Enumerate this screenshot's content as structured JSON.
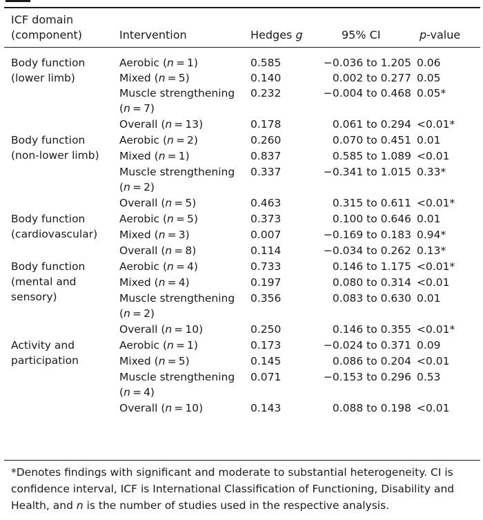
{
  "table": {
    "headers": {
      "domain_line1": "ICF domain",
      "domain_line2": "(component)",
      "intervention": "Intervention",
      "hedges_prefix": "Hedges ",
      "hedges_italic": "g",
      "ci": "95% CI",
      "pvalue_italic": "p",
      "pvalue_suffix": "-value"
    },
    "rows": [
      {
        "domain": [
          "Body function",
          "(lower limb)"
        ],
        "int_a": "Aerobic (",
        "n": "n",
        "int_b": " = 1)",
        "g": "0.585",
        "ci": "−0.036 to 1.205",
        "p": "0.06"
      },
      {
        "domain": [],
        "int_a": "Mixed (",
        "n": "n",
        "int_b": " = 5)",
        "g": "0.140",
        "ci": "0.002 to 0.277",
        "p": "0.05"
      },
      {
        "domain": [],
        "int_a": "Muscle strengthening",
        "int_line2_a": "(",
        "n": "n",
        "int_line2_b": " = 7)",
        "g": "0.232",
        "ci": "−0.004 to 0.468",
        "p": "0.05*"
      },
      {
        "domain": [],
        "int_a": "Overall (",
        "n": "n",
        "int_b": " = 13)",
        "g": "0.178",
        "ci": "0.061 to 0.294",
        "p": "<0.01*"
      },
      {
        "domain": [
          "Body function",
          "(non-lower limb)"
        ],
        "int_a": "Aerobic (",
        "n": "n",
        "int_b": " = 2)",
        "g": "0.260",
        "ci": "0.070 to 0.451",
        "p": "0.01"
      },
      {
        "domain": [],
        "int_a": "Mixed (",
        "n": "n",
        "int_b": " = 1)",
        "g": "0.837",
        "ci": "0.585 to 1.089",
        "p": "<0.01"
      },
      {
        "domain": [],
        "int_a": "Muscle strengthening",
        "int_line2_a": "(",
        "n": "n",
        "int_line2_b": " = 2)",
        "g": "0.337",
        "ci": "−0.341 to 1.015",
        "p": "0.33*"
      },
      {
        "domain": [],
        "int_a": "Overall (",
        "n": "n",
        "int_b": " = 5)",
        "g": "0.463",
        "ci": "0.315 to 0.611",
        "p": "<0.01*"
      },
      {
        "domain": [
          "Body function",
          "(cardiovascular)"
        ],
        "int_a": "Aerobic (",
        "n": "n",
        "int_b": " = 5)",
        "g": "0.373",
        "ci": "0.100 to 0.646",
        "p": "0.01"
      },
      {
        "domain": [],
        "int_a": "Mixed (",
        "n": "n",
        "int_b": " = 3)",
        "g": "0.007",
        "ci": "−0.169 to 0.183",
        "p": "0.94*"
      },
      {
        "domain": [],
        "int_a": "Overall (",
        "n": "n",
        "int_b": " = 8)",
        "g": "0.114",
        "ci": "−0.034 to 0.262",
        "p": "0.13*"
      },
      {
        "domain": [
          "Body function",
          "(mental and",
          "sensory)"
        ],
        "int_a": "Aerobic (",
        "n": "n",
        "int_b": " = 4)",
        "g": "0.733",
        "ci": "0.146 to 1.175",
        "p": "<0.01*"
      },
      {
        "domain": [],
        "int_a": "Mixed (",
        "n": "n",
        "int_b": " = 4)",
        "g": "0.197",
        "ci": "0.080 to 0.314",
        "p": "<0.01"
      },
      {
        "domain": [],
        "int_a": "Muscle strengthening",
        "int_line2_a": "(",
        "n": "n",
        "int_line2_b": " = 2)",
        "g": "0.356",
        "ci": "0.083 to 0.630",
        "p": "0.01"
      },
      {
        "domain": [],
        "int_a": "Overall (",
        "n": "n",
        "int_b": " = 10)",
        "g": "0.250",
        "ci": "0.146 to 0.355",
        "p": "<0.01*"
      },
      {
        "domain": [
          "Activity and",
          "participation"
        ],
        "int_a": "Aerobic (",
        "n": "n",
        "int_b": " = 1)",
        "g": "0.173",
        "ci": "−0.024 to 0.371",
        "p": "0.09"
      },
      {
        "domain": [],
        "int_a": "Mixed (",
        "n": "n",
        "int_b": " = 5)",
        "g": "0.145",
        "ci": "0.086 to 0.204",
        "p": "<0.01"
      },
      {
        "domain": [],
        "int_a": "Muscle strengthening",
        "int_line2_a": "(",
        "n": "n",
        "int_line2_b": " = 4)",
        "g": "0.071",
        "ci": "−0.153 to 0.296",
        "p": "0.53"
      },
      {
        "domain": [],
        "int_a": "Overall (",
        "n": "n",
        "int_b": " = 10)",
        "g": "0.143",
        "ci": "0.088 to 0.198",
        "p": "<0.01"
      }
    ]
  },
  "footnote": {
    "part1": "*Denotes findings with significant and moderate to substantial heterogeneity. CI is confidence interval, ICF is International Classification of Functioning, Disability and Health, and ",
    "n": "n",
    "part2": " is the number of studies used in the respective analysis."
  }
}
